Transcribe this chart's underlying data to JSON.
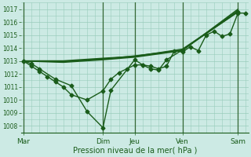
{
  "xlabel": "Pression niveau de la mer( hPa )",
  "bg_color": "#cceae4",
  "grid_color": "#99ccbb",
  "line_color": "#1a5c1a",
  "vline_color": "#336633",
  "ylim": [
    1007.5,
    1017.5
  ],
  "yticks": [
    1008,
    1009,
    1010,
    1011,
    1012,
    1013,
    1014,
    1015,
    1016,
    1017
  ],
  "xlim": [
    -0.3,
    28.3
  ],
  "day_labels": [
    "Mar",
    "Dim",
    "Jeu",
    "Ven",
    "Sam"
  ],
  "day_positions": [
    0,
    10,
    14,
    20,
    27
  ],
  "vline_positions": [
    0,
    10,
    14,
    20,
    27
  ],
  "series": [
    {
      "x": [
        0,
        1,
        2,
        3,
        4,
        5,
        6,
        8,
        10,
        11,
        12,
        13,
        14,
        15,
        16,
        17,
        18,
        19,
        20,
        21,
        22,
        23,
        24,
        25,
        26,
        27,
        28
      ],
      "y": [
        1013.0,
        1012.6,
        1012.2,
        1011.8,
        1011.4,
        1011.0,
        1010.4,
        1010.0,
        1010.7,
        1011.6,
        1012.1,
        1012.4,
        1012.7,
        1012.7,
        1012.6,
        1012.4,
        1012.6,
        1013.8,
        1013.7,
        1014.1,
        1013.8,
        1015.0,
        1015.3,
        1014.9,
        1015.1,
        1016.7,
        1016.7
      ],
      "marker": "D",
      "ms": 2.5,
      "lw": 1.0
    },
    {
      "x": [
        0,
        5,
        10,
        14,
        20,
        27
      ],
      "y": [
        1013.0,
        1013.0,
        1013.2,
        1013.35,
        1013.9,
        1016.8
      ],
      "marker": null,
      "ms": 0,
      "lw": 1.4
    },
    {
      "x": [
        0,
        5,
        10,
        14,
        20,
        27
      ],
      "y": [
        1013.0,
        1012.9,
        1013.1,
        1013.3,
        1013.8,
        1017.0
      ],
      "marker": null,
      "ms": 0,
      "lw": 1.1
    },
    {
      "x": [
        0,
        5,
        10,
        14,
        20,
        27
      ],
      "y": [
        1013.0,
        1012.95,
        1013.15,
        1013.4,
        1013.85,
        1016.9
      ],
      "marker": null,
      "ms": 0,
      "lw": 1.0
    },
    {
      "x": [
        0,
        1,
        2,
        4,
        6,
        8,
        10,
        11,
        14,
        15,
        16,
        17,
        18,
        20,
        27
      ],
      "y": [
        1013.0,
        1012.8,
        1012.4,
        1011.6,
        1011.1,
        1009.1,
        1007.85,
        1010.75,
        1013.1,
        1012.7,
        1012.4,
        1012.3,
        1013.1,
        1013.85,
        1016.8
      ],
      "marker": "D",
      "ms": 2.5,
      "lw": 1.0
    }
  ]
}
